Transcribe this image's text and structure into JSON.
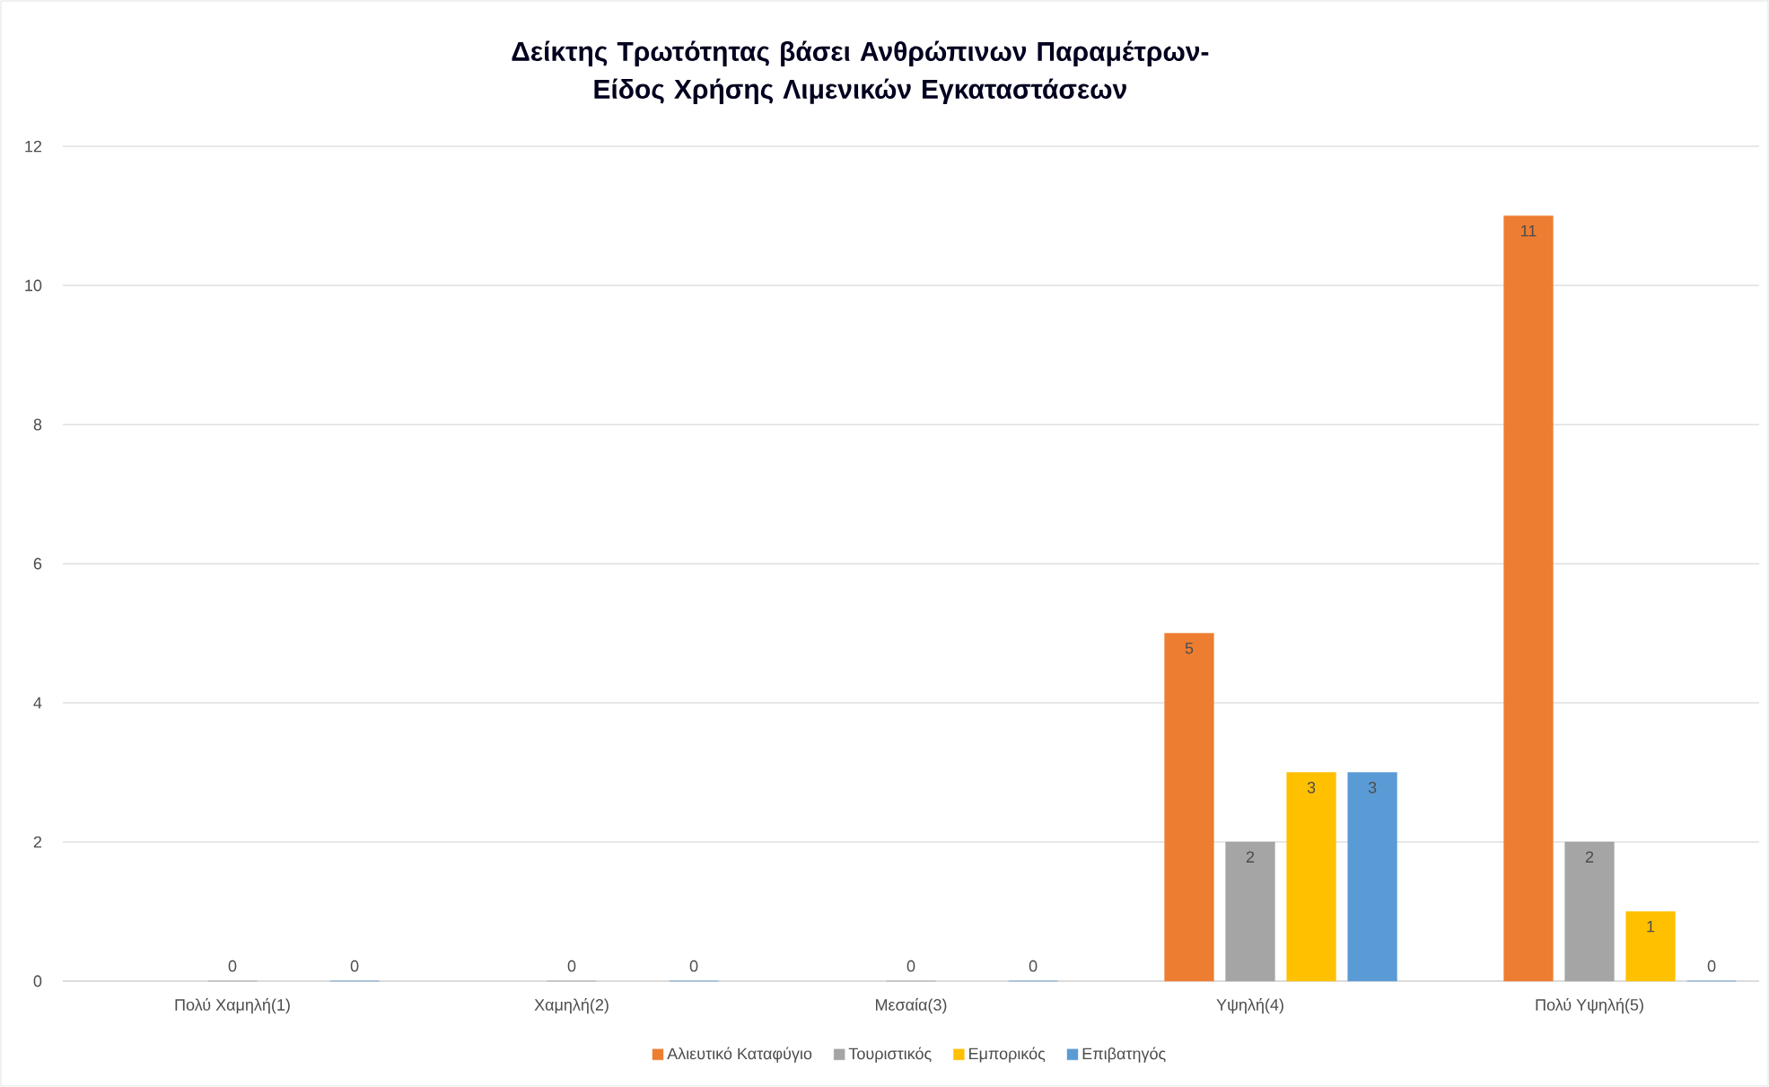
{
  "chart_data": {
    "type": "bar",
    "title": "Δείκτης Τρωτότητας βάσει Ανθρώπινων Παραμέτρων-Είδος Χρήσης Λιμενικών Εγκαταστάσεων",
    "categories": [
      "Πολύ Χαμηλή(1)",
      "Χαμηλή(2)",
      "Μεσαία(3)",
      "Υψηλή(4)",
      "Πολύ Υψηλή(5)"
    ],
    "series": [
      {
        "name": "Αλιευτικό Καταφύγιο",
        "color": "#ed7d31",
        "values": [
          null,
          null,
          null,
          5,
          11
        ],
        "value_labels": [
          null,
          null,
          null,
          "5",
          "11"
        ]
      },
      {
        "name": "Τουριστικός",
        "color": "#a5a5a5",
        "values": [
          0,
          0,
          0,
          2,
          2
        ],
        "value_labels": [
          "0",
          "0",
          "0",
          "2",
          "2"
        ]
      },
      {
        "name": "Εμπορικός",
        "color": "#ffc000",
        "values": [
          null,
          null,
          null,
          3,
          1
        ],
        "value_labels": [
          null,
          null,
          null,
          "3",
          "1"
        ]
      },
      {
        "name": "Επιβατηγός",
        "color": "#5b9bd5",
        "values": [
          0,
          0,
          0,
          3,
          0
        ],
        "value_labels": [
          "0",
          "0",
          "0",
          "3",
          "0"
        ]
      }
    ],
    "ylim": [
      0,
      12
    ],
    "yticks": [
      0,
      2,
      4,
      6,
      8,
      10,
      12
    ],
    "grid": "y",
    "legend": "bottom"
  }
}
